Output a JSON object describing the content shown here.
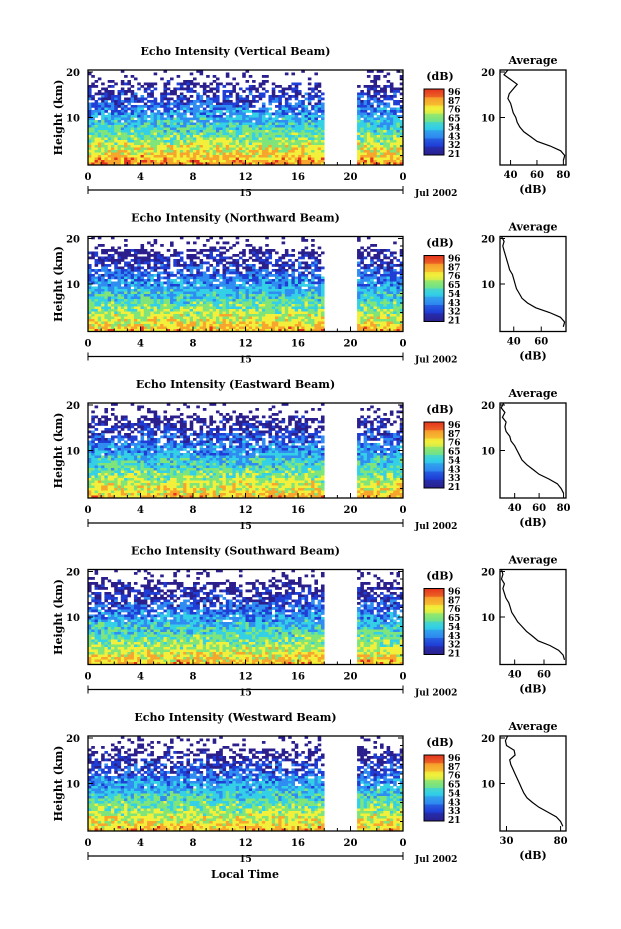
{
  "chart_data": [
    {
      "type": "heatmap",
      "title": "Echo Intensity (Vertical Beam)",
      "ylabel": "Height (km)",
      "xticks": [
        "0",
        "4",
        "8",
        "12",
        "16",
        "20",
        "0"
      ],
      "yticks": [
        "20",
        "10"
      ],
      "date_label": "Jul 2002",
      "day_label": "15",
      "colorbar": {
        "unit": "(dB)",
        "ticks": [
          "96",
          "87",
          "76",
          "65",
          "54",
          "43",
          "32",
          "21"
        ],
        "range": [
          21,
          96
        ]
      },
      "data_gap_hours": [
        18,
        20.4
      ],
      "profile": {
        "title": "Average",
        "xlabel": "(dB)",
        "xticks": [
          "40",
          "60",
          "80"
        ],
        "yticks": [
          "20",
          "10"
        ],
        "xlim": [
          32,
          82
        ],
        "heights": [
          1,
          2,
          3,
          4,
          5,
          6,
          7,
          8,
          9,
          10,
          11,
          12,
          13,
          14,
          15,
          16,
          17,
          18,
          19,
          20
        ],
        "values": [
          80,
          81,
          78,
          70,
          60,
          55,
          50,
          47,
          45,
          44,
          42,
          41,
          40,
          38,
          39,
          42,
          45,
          40,
          35,
          38
        ]
      }
    },
    {
      "type": "heatmap",
      "title": "Echo Intensity (Northward Beam)",
      "ylabel": "Height (km)",
      "xticks": [
        "0",
        "4",
        "8",
        "12",
        "16",
        "20",
        "0"
      ],
      "yticks": [
        "20",
        "10"
      ],
      "date_label": "Jul 2002",
      "day_label": "15",
      "colorbar": {
        "unit": "(dB)",
        "ticks": [
          "96",
          "87",
          "76",
          "65",
          "54",
          "43",
          "32",
          "21"
        ],
        "range": [
          21,
          96
        ]
      },
      "data_gap_hours": [
        18,
        20.4
      ],
      "profile": {
        "title": "Average",
        "xlabel": "(dB)",
        "xticks": [
          "40",
          "60"
        ],
        "yticks": [
          "20",
          "10"
        ],
        "xlim": [
          30,
          78
        ],
        "heights": [
          1,
          2,
          3,
          4,
          5,
          6,
          7,
          8,
          9,
          10,
          11,
          12,
          13,
          14,
          15,
          16,
          17,
          18,
          19,
          20
        ],
        "values": [
          76,
          77,
          74,
          66,
          56,
          50,
          46,
          44,
          42,
          41,
          40,
          39,
          37,
          36,
          35,
          34,
          33,
          32,
          33,
          31
        ]
      }
    },
    {
      "type": "heatmap",
      "title": "Echo Intensity (Eastward Beam)",
      "ylabel": "Height (km)",
      "xticks": [
        "0",
        "4",
        "8",
        "12",
        "16",
        "20",
        "0"
      ],
      "yticks": [
        "20",
        "10"
      ],
      "date_label": "Jul 2002",
      "day_label": "15",
      "colorbar": {
        "unit": "(dB)",
        "ticks": [
          "96",
          "87",
          "76",
          "65",
          "54",
          "43",
          "33",
          "21"
        ],
        "range": [
          21,
          96
        ]
      },
      "data_gap_hours": [
        18,
        20.4
      ],
      "profile": {
        "title": "Average",
        "xlabel": "(dB)",
        "xticks": [
          "40",
          "60",
          "80"
        ],
        "yticks": [
          "20",
          "10"
        ],
        "xlim": [
          28,
          82
        ],
        "heights": [
          1,
          2,
          3,
          4,
          5,
          6,
          7,
          8,
          9,
          10,
          11,
          12,
          13,
          14,
          15,
          16,
          17,
          18,
          19,
          20
        ],
        "values": [
          80,
          78,
          75,
          68,
          60,
          55,
          50,
          46,
          44,
          42,
          40,
          37,
          36,
          33,
          32,
          33,
          30,
          32,
          29,
          31
        ]
      }
    },
    {
      "type": "heatmap",
      "title": "Echo Intensity (Southward Beam)",
      "ylabel": "Height (km)",
      "xticks": [
        "0",
        "4",
        "8",
        "12",
        "16",
        "20",
        "0"
      ],
      "yticks": [
        "20",
        "10"
      ],
      "date_label": "Jul 2002",
      "day_label": "15",
      "colorbar": {
        "unit": "(dB)",
        "ticks": [
          "96",
          "87",
          "76",
          "65",
          "54",
          "43",
          "32",
          "21"
        ],
        "range": [
          21,
          96
        ]
      },
      "data_gap_hours": [
        18,
        20.4
      ],
      "profile": {
        "title": "Average",
        "xlabel": "(dB)",
        "xticks": [
          "40",
          "60"
        ],
        "yticks": [
          "20",
          "10"
        ],
        "xlim": [
          30,
          75
        ],
        "heights": [
          1,
          2,
          3,
          4,
          5,
          6,
          7,
          8,
          9,
          10,
          11,
          12,
          13,
          14,
          15,
          16,
          17,
          18,
          19,
          20
        ],
        "values": [
          74,
          73,
          70,
          64,
          56,
          52,
          48,
          45,
          42,
          40,
          38,
          37,
          36,
          34,
          33,
          32,
          33,
          31,
          32,
          31
        ]
      }
    },
    {
      "type": "heatmap",
      "title": "Echo Intensity (Westward Beam)",
      "ylabel": "Height (km)",
      "xticks": [
        "0",
        "4",
        "8",
        "12",
        "16",
        "20",
        "0"
      ],
      "yticks": [
        "20",
        "10"
      ],
      "date_label": "Jul 2002",
      "day_label": "15",
      "colorbar": {
        "unit": "(dB)",
        "ticks": [
          "96",
          "87",
          "76",
          "65",
          "54",
          "43",
          "33",
          "21"
        ],
        "range": [
          21,
          96
        ]
      },
      "data_gap_hours": [
        18,
        20.4
      ],
      "profile": {
        "title": "Average",
        "xlabel": "(dB)",
        "xticks": [
          "30",
          "80"
        ],
        "yticks": [
          "20",
          "10"
        ],
        "xlim": [
          24,
          85
        ],
        "heights": [
          1,
          2,
          3,
          4,
          5,
          6,
          7,
          8,
          9,
          10,
          11,
          12,
          13,
          14,
          15,
          16,
          17,
          18,
          19,
          20
        ],
        "values": [
          82,
          80,
          76,
          68,
          60,
          54,
          49,
          46,
          44,
          42,
          40,
          38,
          36,
          34,
          33,
          38,
          37,
          30,
          29,
          31
        ]
      }
    }
  ],
  "footer": {
    "xlabel": "Local Time"
  }
}
